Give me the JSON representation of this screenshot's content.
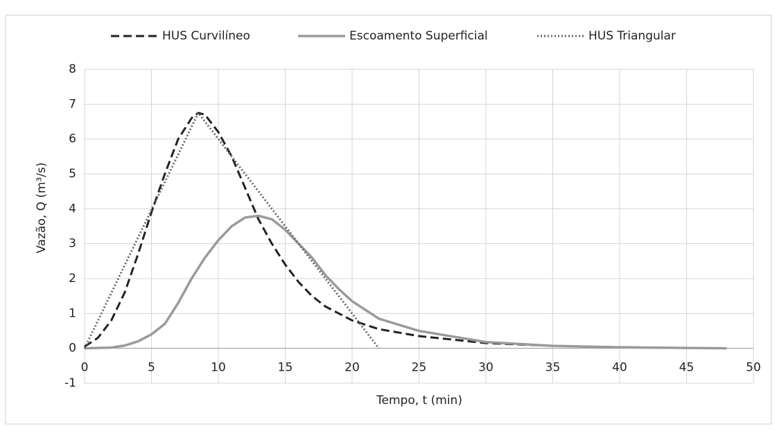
{
  "chart_data": {
    "type": "line",
    "x_label": "Tempo, t (min)",
    "y_label": "Vazão, Q (m³/s)",
    "xlim": [
      0,
      50
    ],
    "xticks": [
      0,
      5,
      10,
      15,
      20,
      25,
      30,
      35,
      40,
      45,
      50
    ],
    "ylim": [
      -1,
      8
    ],
    "yticks": [
      -1,
      0,
      1,
      2,
      3,
      4,
      5,
      6,
      7,
      8
    ],
    "grid": true,
    "legend": "top",
    "series": [
      {
        "name": "HUS Curvilíneo",
        "color": "#222222",
        "style": "dashed",
        "x": [
          0,
          1,
          2,
          3,
          4,
          5,
          6,
          7,
          8,
          8.5,
          9,
          10,
          11,
          12,
          13,
          14,
          15,
          16,
          17,
          18,
          19,
          20,
          22,
          25,
          30,
          35,
          40,
          45,
          48
        ],
        "values": [
          0.05,
          0.3,
          0.8,
          1.6,
          2.7,
          3.9,
          5.0,
          6.0,
          6.6,
          6.75,
          6.7,
          6.2,
          5.5,
          4.6,
          3.7,
          3.0,
          2.4,
          1.9,
          1.5,
          1.2,
          1.0,
          0.8,
          0.55,
          0.35,
          0.15,
          0.07,
          0.03,
          0.01,
          0
        ]
      },
      {
        "name": "Escoamento Superficial",
        "color": "#9a9a9a",
        "style": "solid",
        "x": [
          0,
          2,
          3,
          4,
          5,
          6,
          7,
          8,
          9,
          10,
          11,
          12,
          13,
          14,
          15,
          16,
          17,
          18,
          19,
          20,
          22,
          25,
          30,
          35,
          40,
          45,
          48
        ],
        "values": [
          0,
          0.02,
          0.08,
          0.2,
          0.4,
          0.7,
          1.3,
          2.0,
          2.6,
          3.1,
          3.5,
          3.75,
          3.8,
          3.7,
          3.4,
          3.0,
          2.6,
          2.1,
          1.7,
          1.35,
          0.85,
          0.5,
          0.18,
          0.07,
          0.03,
          0.01,
          0
        ]
      },
      {
        "name": "HUS Triangular",
        "color": "#666666",
        "style": "dotted",
        "x": [
          0,
          8.5,
          22
        ],
        "values": [
          0,
          6.75,
          0
        ]
      }
    ]
  }
}
